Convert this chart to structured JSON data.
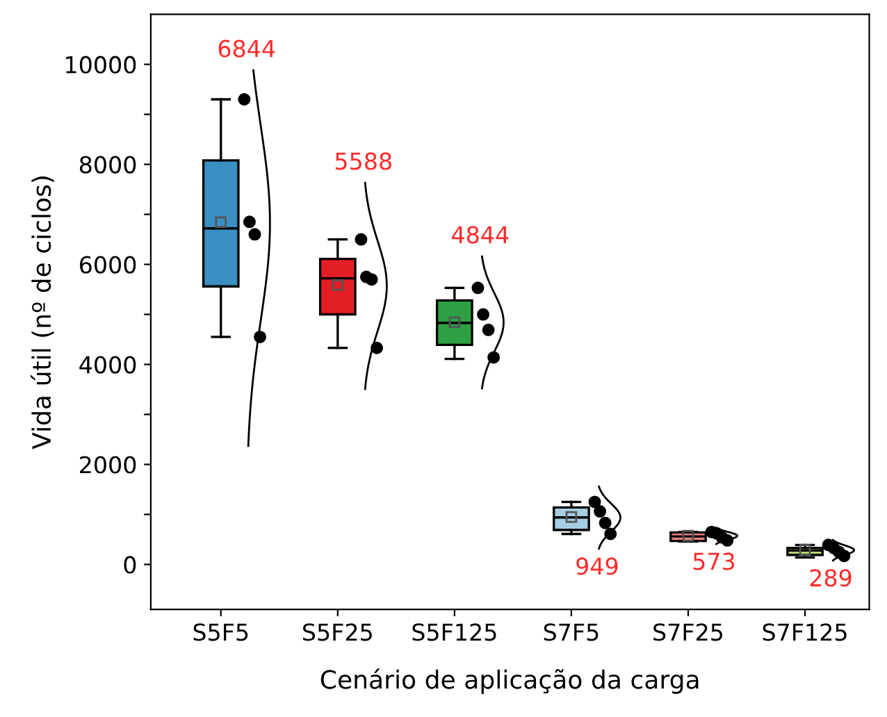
{
  "chart_data": {
    "type": "box",
    "xlabel": "Cenário de aplicação da carga",
    "ylabel": "Vida útil (nº de ciclos)",
    "categories": [
      "S5F5",
      "S5F25",
      "S5F125",
      "S7F5",
      "S7F25",
      "S7F125"
    ],
    "colors": [
      "#3a8fc4",
      "#e31e24",
      "#2ca043",
      "#a6cee3",
      "#f08080",
      "#b5d56a"
    ],
    "boxes": [
      {
        "low": 4550,
        "q1": 5560,
        "median": 6720,
        "q3": 8080,
        "high": 9300,
        "mean": 6844
      },
      {
        "low": 4330,
        "q1": 5000,
        "median": 5720,
        "q3": 6110,
        "high": 6500,
        "mean": 5588
      },
      {
        "low": 4110,
        "q1": 4390,
        "median": 4830,
        "q3": 5280,
        "high": 5530,
        "mean": 4844
      },
      {
        "low": 610,
        "q1": 690,
        "median": 940,
        "q3": 1140,
        "high": 1250,
        "mean": 949
      },
      {
        "low": 460,
        "q1": 470,
        "median": 560,
        "q3": 640,
        "high": 650,
        "mean": 573
      },
      {
        "low": 140,
        "q1": 190,
        "median": 280,
        "q3": 330,
        "high": 390,
        "mean": 289
      }
    ],
    "series": [
      {
        "type": "scatter",
        "color": "#000000",
        "marker": "circle",
        "x": [
          "S5F5",
          "S5F5",
          "S5F5",
          "S5F5",
          "S5F25",
          "S5F25",
          "S5F25",
          "S5F25",
          "S5F125",
          "S5F125",
          "S5F125",
          "S5F125",
          "S7F5",
          "S7F5",
          "S7F5",
          "S7F5",
          "S7F25",
          "S7F25",
          "S7F25",
          "S7F25",
          "S7F125",
          "S7F125",
          "S7F125",
          "S7F125"
        ],
        "values": [
          9300,
          6850,
          6600,
          4550,
          6500,
          5750,
          5700,
          4330,
          5530,
          5000,
          4690,
          4140,
          1250,
          1060,
          830,
          610,
          650,
          620,
          540,
          480,
          390,
          330,
          250,
          170
        ]
      }
    ],
    "annotations": [
      "6844",
      "5588",
      "4844",
      "949",
      "573",
      "289"
    ],
    "ylim": [
      -900,
      11000
    ],
    "yticks": [
      0,
      {
        "value": 1000,
        "label": null
      },
      2000,
      {
        "value": 3000,
        "label": null
      },
      4000,
      {
        "value": 5000,
        "label": null
      },
      6000,
      {
        "value": 7000,
        "label": null
      },
      8000,
      {
        "value": 9000,
        "label": null
      },
      10000
    ],
    "grid": false,
    "legend": false
  }
}
